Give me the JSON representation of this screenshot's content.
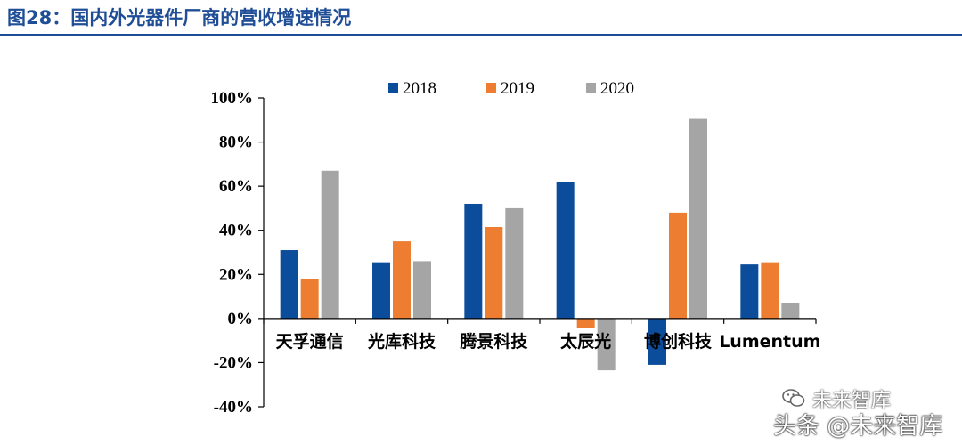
{
  "figure": {
    "title": "图28：国内外光器件厂商的营收增速情况"
  },
  "colors": {
    "title": "#1f4e96",
    "s2018": "#0b4d9a",
    "s2019": "#ed7d31",
    "s2020": "#a5a5a5"
  },
  "watermarks": {
    "wechat": "未来智库",
    "toutiao": "头条 @未来智库"
  },
  "chart_data": {
    "type": "bar",
    "title": "",
    "xlabel": "",
    "ylabel": "",
    "ylim": [
      -40,
      100
    ],
    "yticks": [
      100,
      80,
      60,
      40,
      20,
      0,
      -20,
      -40
    ],
    "ytick_labels": [
      "100%",
      "80%",
      "60%",
      "40%",
      "20%",
      "0%",
      "-20%",
      "-40%"
    ],
    "categories": [
      "天孚通信",
      "光库科技",
      "腾景科技",
      "太辰光",
      "博创科技",
      "Lumentum"
    ],
    "legend": {
      "position": "top"
    },
    "series": [
      {
        "name": "2018",
        "color": "#0b4d9a",
        "values": [
          31,
          25.5,
          52,
          62,
          -21,
          24.5
        ]
      },
      {
        "name": "2019",
        "color": "#ed7d31",
        "values": [
          18,
          35,
          41.5,
          -4.5,
          48,
          25.5
        ]
      },
      {
        "name": "2020",
        "color": "#a5a5a5",
        "values": [
          67,
          26,
          50,
          -23.5,
          90.5,
          7
        ]
      }
    ]
  }
}
